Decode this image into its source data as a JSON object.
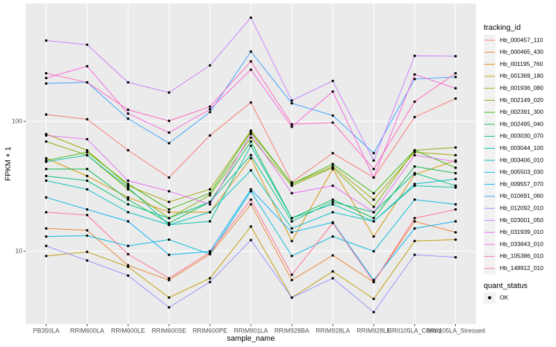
{
  "chart_data": {
    "type": "line",
    "x_label": "sample_name",
    "y_label": "FPKM + 1",
    "log_y": true,
    "grid": true,
    "legend_position": "right",
    "legend_title": "tracking_id",
    "point_color": "#000000",
    "shape_legend": {
      "title": "quant_status",
      "labels": [
        "OK"
      ]
    },
    "categories": [
      "PB350LA",
      "RRIM600LA",
      "RRIM600LE",
      "RRIM600SE",
      "RRIM600PE",
      "RRIM901LA",
      "RRIM928BA",
      "RRIM928LA",
      "RRIM928LE",
      "RRII105LA_Control",
      "RRII105LA_Stressed"
    ],
    "ylim": [
      2.75,
      810
    ],
    "yticks": [
      10,
      100
    ],
    "series": [
      {
        "name": "Hb_000457_110",
        "color": "#F8766D",
        "values": [
          113,
          104,
          60,
          37,
          78,
          140,
          34,
          57,
          37,
          108,
          150
        ]
      },
      {
        "name": "Hb_000465_430",
        "color": "#EA8331",
        "values": [
          15,
          14.5,
          7.8,
          6.0,
          9.5,
          23,
          6.0,
          9.3,
          5.8,
          17,
          14
        ]
      },
      {
        "name": "Hb_001195_760",
        "color": "#D89000",
        "values": [
          52,
          38,
          26,
          20,
          20,
          52,
          12,
          43,
          13,
          39,
          50
        ]
      },
      {
        "name": "Hb_001369_180",
        "color": "#C09B00",
        "values": [
          9.2,
          9.9,
          7.6,
          4.4,
          6.2,
          15.5,
          4.4,
          7.0,
          4.3,
          12,
          12.3
        ]
      },
      {
        "name": "Hb_001936_080",
        "color": "#A3A500",
        "values": [
          80,
          60,
          32,
          24,
          30,
          85,
          33,
          45,
          25,
          58,
          55
        ]
      },
      {
        "name": "Hb_002149_020",
        "color": "#7CAE00",
        "values": [
          70,
          55,
          30,
          18,
          27,
          75,
          32,
          44,
          22,
          60,
          63
        ]
      },
      {
        "name": "Hb_002391_300",
        "color": "#39B600",
        "values": [
          50,
          58,
          33,
          21,
          28,
          83,
          33,
          47,
          28,
          60,
          44
        ]
      },
      {
        "name": "Hb_002495_040",
        "color": "#00BB4E",
        "values": [
          43,
          43,
          25,
          16.5,
          24,
          70,
          18,
          25,
          18,
          45,
          40
        ]
      },
      {
        "name": "Hb_003030_070",
        "color": "#00BF7D",
        "values": [
          38,
          35,
          23,
          18,
          24,
          55,
          17,
          24,
          20,
          40,
          32
        ]
      },
      {
        "name": "Hb_003044_100",
        "color": "#00C1A3",
        "values": [
          49,
          55,
          31,
          16,
          17,
          65,
          18,
          23,
          17,
          32,
          31
        ]
      },
      {
        "name": "Hb_003406_010",
        "color": "#00BFC4",
        "values": [
          35,
          30,
          20,
          16,
          20,
          42,
          15,
          20,
          17,
          33,
          36
        ]
      },
      {
        "name": "Hb_005503_030",
        "color": "#00BAE0",
        "values": [
          13,
          13.2,
          11,
          12.3,
          9.5,
          29,
          9.2,
          13,
          10,
          25,
          23
        ]
      },
      {
        "name": "Hb_009557_070",
        "color": "#00B0F6",
        "values": [
          26,
          21,
          17,
          9.4,
          10,
          30,
          14,
          16.7,
          6,
          15,
          17
        ]
      },
      {
        "name": "Hb_010691_060",
        "color": "#35A2FF",
        "values": [
          196,
          200,
          105,
          68,
          118,
          345,
          138,
          111,
          57,
          212,
          220
        ]
      },
      {
        "name": "Hb_012092_010",
        "color": "#9590FF",
        "values": [
          11,
          8.5,
          6.5,
          3.7,
          5.8,
          12.2,
          4.4,
          6.2,
          3.4,
          9.4,
          9.0
        ]
      },
      {
        "name": "Hb_023001_050",
        "color": "#C77CFF",
        "values": [
          420,
          390,
          200,
          167,
          270,
          630,
          145,
          205,
          50,
          320,
          318
        ]
      },
      {
        "name": "Hb_031939_010",
        "color": "#E76BF3",
        "values": [
          78,
          73,
          35,
          29,
          23,
          80,
          28,
          32,
          20,
          55,
          49
        ]
      },
      {
        "name": "Hb_033843_010",
        "color": "#FA62DB",
        "values": [
          216,
          266,
          115,
          82,
          124,
          250,
          91,
          170,
          37,
          230,
          180
        ]
      },
      {
        "name": "Hb_105386_010",
        "color": "#FF62BC",
        "values": [
          235,
          200,
          123,
          101,
          130,
          290,
          95,
          98,
          43,
          142,
          235
        ]
      },
      {
        "name": "Hb_148912_010",
        "color": "#FF6C91",
        "values": [
          20,
          19,
          9.5,
          6.2,
          9.8,
          25,
          6.6,
          16.5,
          5.8,
          18,
          21
        ]
      }
    ]
  }
}
